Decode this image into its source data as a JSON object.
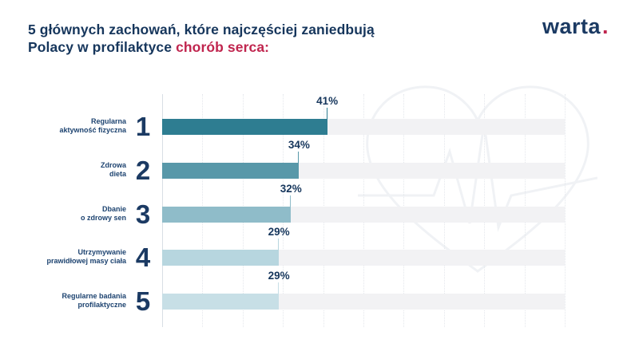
{
  "header": {
    "title_line1": "5 głównych zachowań, które najczęściej zaniedbują",
    "title_line2_prefix": "Polacy w profilaktyce ",
    "title_line2_highlight": "chorób serca:",
    "logo_text": "warta",
    "logo_dot": "."
  },
  "colors": {
    "navy": "#16365c",
    "red_accent": "#c0254e",
    "track": "#f2f2f4",
    "gridline": "#e4e7ec",
    "axis_line": "#d8dee5",
    "watermark": "#f0f2f5"
  },
  "chart_data": {
    "type": "bar",
    "orientation": "horizontal",
    "title": "5 głównych zachowań, które najczęściej zaniedbują Polacy w profilaktyce chorób serca",
    "categories": [
      "Regularna aktywność fizyczna",
      "Zdrowa dieta",
      "Dbanie o zdrowy sen",
      "Utrzymywanie prawidłowej masy ciała",
      "Regularne badania profilaktyczne"
    ],
    "category_lines": [
      [
        "Regularna",
        "aktywność fizyczna"
      ],
      [
        "Zdrowa",
        "dieta"
      ],
      [
        "Dbanie",
        "o zdrowy sen"
      ],
      [
        "Utrzymywanie",
        "prawidłowej masy ciała"
      ],
      [
        "Regularne badania",
        "profilaktyczne"
      ]
    ],
    "ranks": [
      "1",
      "2",
      "3",
      "4",
      "5"
    ],
    "values": [
      41,
      34,
      32,
      29,
      29
    ],
    "value_labels": [
      "41%",
      "34%",
      "32%",
      "29%",
      "29%"
    ],
    "bar_colors": [
      "#2e7d91",
      "#5898a9",
      "#8fbcc9",
      "#b7d6df",
      "#c7dfe6"
    ],
    "xlim": [
      0,
      100
    ],
    "gridline_step": 10,
    "grid": "vertical-dotted",
    "legend": "none",
    "xlabel": "",
    "ylabel": ""
  }
}
